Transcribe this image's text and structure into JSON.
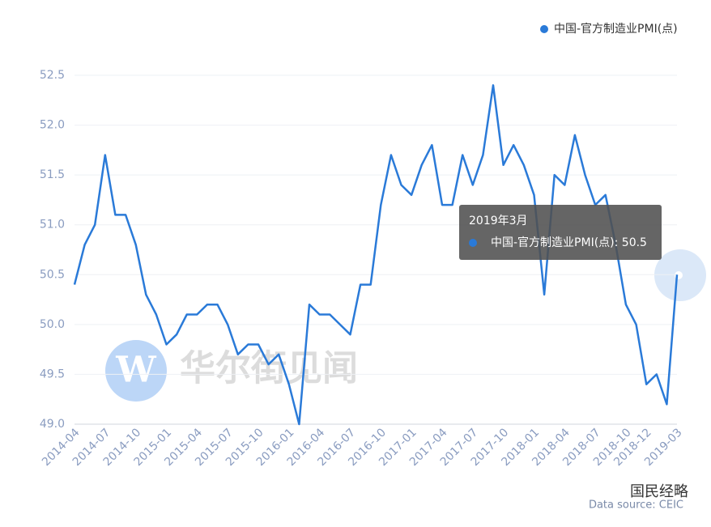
{
  "chart_data": {
    "type": "line",
    "categories": [
      "2014-04",
      null,
      null,
      "2014-07",
      null,
      null,
      "2014-10",
      null,
      null,
      "2015-01",
      null,
      null,
      "2015-04",
      null,
      null,
      "2015-07",
      null,
      null,
      "2015-10",
      null,
      null,
      "2016-01",
      null,
      null,
      "2016-04",
      null,
      null,
      "2016-07",
      null,
      null,
      "2016-10",
      null,
      null,
      "2017-01",
      null,
      null,
      "2017-04",
      null,
      null,
      "2017-07",
      null,
      null,
      "2017-10",
      null,
      null,
      "2018-01",
      null,
      null,
      "2018-04",
      null,
      null,
      "2018-07",
      null,
      null,
      "2018-10",
      null,
      "2018-12",
      null,
      null,
      "2019-03"
    ],
    "series": [
      {
        "name": "中国-官方制造业PMI(点)",
        "color": "#2a7ad8",
        "values": [
          50.4,
          50.8,
          51.0,
          51.7,
          51.1,
          51.1,
          50.8,
          50.3,
          50.1,
          49.8,
          49.9,
          50.1,
          50.1,
          50.2,
          50.2,
          50.0,
          49.7,
          49.8,
          49.8,
          49.6,
          49.7,
          49.4,
          49.0,
          50.2,
          50.1,
          50.1,
          50.0,
          49.9,
          50.4,
          50.4,
          51.2,
          51.7,
          51.4,
          51.3,
          51.6,
          51.8,
          51.2,
          51.2,
          51.7,
          51.4,
          51.7,
          52.4,
          51.6,
          51.8,
          51.6,
          51.3,
          50.3,
          51.5,
          51.4,
          51.9,
          51.5,
          51.2,
          51.3,
          50.8,
          50.2,
          50.0,
          49.4,
          49.5,
          49.2,
          50.5
        ]
      }
    ],
    "ylim": [
      49.0,
      52.5
    ],
    "yticks": [
      {
        "value": 49,
        "label": "49.0"
      },
      49.5,
      {
        "value": 50,
        "label": "50.0"
      },
      50.5,
      {
        "value": 51,
        "label": "51.0"
      },
      51.5,
      {
        "value": 52,
        "label": "52.0"
      },
      52.5
    ],
    "grid": true,
    "legend": "top-right",
    "tooltip": {
      "title": "2019年3月",
      "text": "中国-官方制造业PMI(点): 50.5"
    },
    "watermark": "华尔街见闻",
    "source": "Data source: CEIC",
    "brand": "国民经略"
  }
}
